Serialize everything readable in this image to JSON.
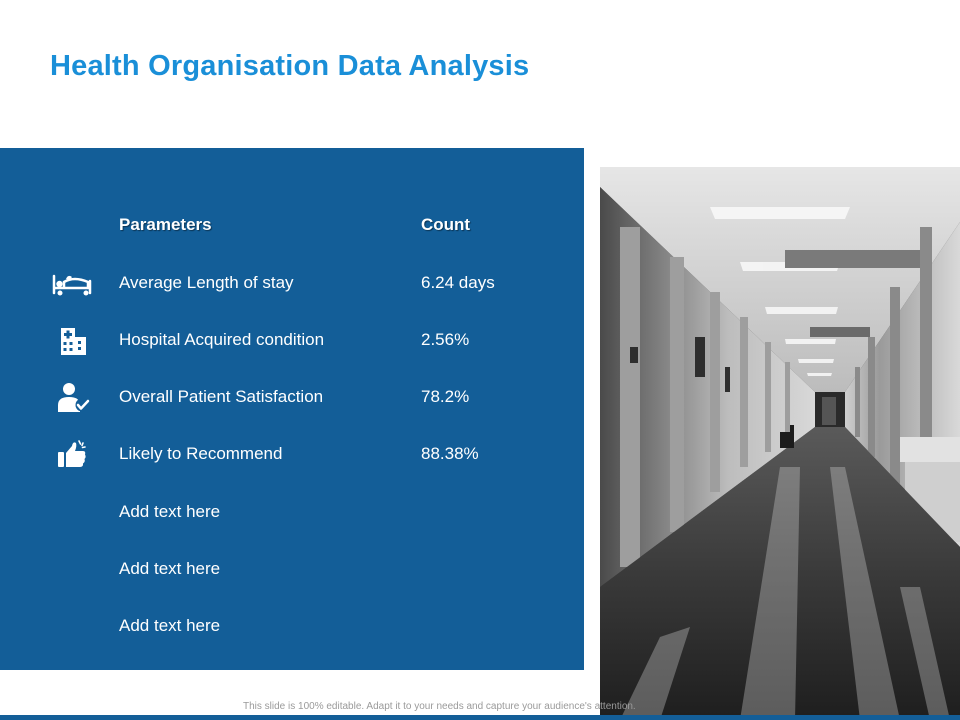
{
  "slide": {
    "title": "Health Organisation Data Analysis",
    "footer": "This slide is 100% editable. Adapt it to your needs and capture your audience's attention."
  },
  "colors": {
    "title": "#1a8fd8",
    "panel": "#135e98",
    "text_on_panel": "#ffffff"
  },
  "table": {
    "headers": {
      "parameter": "Parameters",
      "count": "Count"
    },
    "rows": [
      {
        "parameter": "Average Length of stay",
        "count": "6.24 days",
        "icon": "hospital-bed-icon"
      },
      {
        "parameter": "Hospital Acquired condition",
        "count": "2.56%",
        "icon": "hospital-building-icon"
      },
      {
        "parameter": "Overall Patient Satisfaction",
        "count": "78.2%",
        "icon": "satisfied-patient-icon"
      },
      {
        "parameter": "Likely to Recommend",
        "count": "88.38%",
        "icon": "thumbs-up-icon"
      },
      {
        "parameter": "Add text here",
        "count": ""
      },
      {
        "parameter": "Add text here",
        "count": ""
      },
      {
        "parameter": "Add text here",
        "count": ""
      }
    ]
  },
  "image": {
    "subject": "hospital-corridor-photo"
  }
}
